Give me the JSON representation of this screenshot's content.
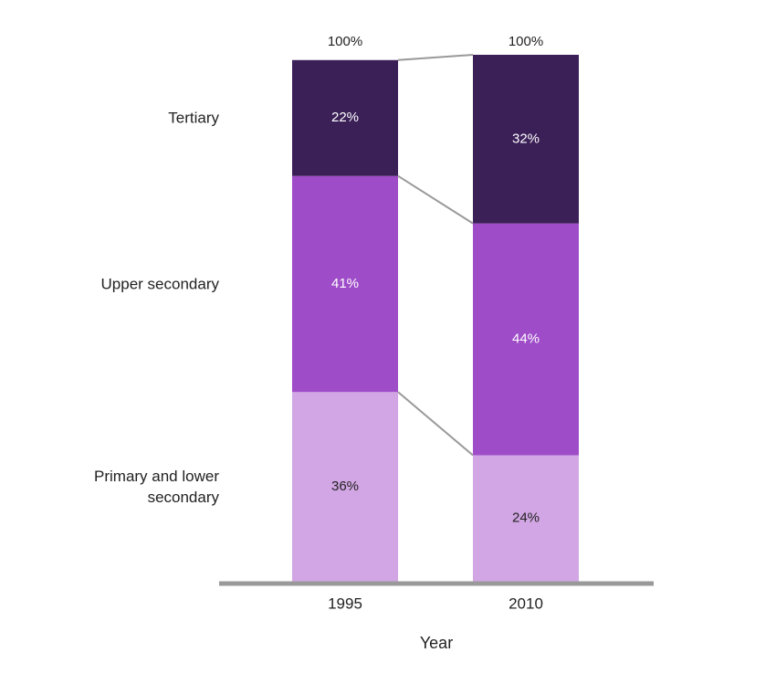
{
  "chart_data": {
    "type": "stacked_bar",
    "categories": [
      "1995",
      "2010"
    ],
    "x_label": "Year",
    "series": [
      {
        "name": "Primary and lower secondary",
        "color": "#d2a6e4",
        "label_color": "#222222",
        "values": [
          36,
          24
        ],
        "value_labels": [
          "36%",
          "24%"
        ]
      },
      {
        "name": "Upper secondary",
        "color": "#9f4cc9",
        "label_color": "#ffffff",
        "values": [
          41,
          44
        ],
        "value_labels": [
          "41%",
          "44%"
        ]
      },
      {
        "name": "Tertiary",
        "color": "#3b1f57",
        "label_color": "#ffffff",
        "values": [
          22,
          32
        ],
        "value_labels": [
          "22%",
          "32%"
        ]
      }
    ],
    "totals": [
      100,
      100
    ],
    "total_labels": [
      "100%",
      "100%"
    ]
  }
}
